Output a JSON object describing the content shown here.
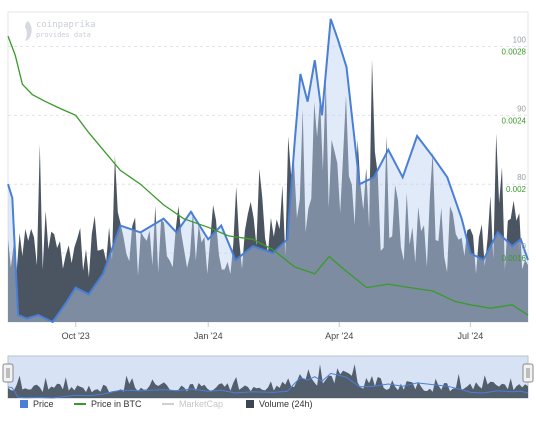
{
  "watermark": {
    "title": "coinpaprika",
    "subtitle": "provides data"
  },
  "legend": [
    {
      "key": "price",
      "label": "Price",
      "color": "#4a7fd6",
      "style": "box"
    },
    {
      "key": "price_btc",
      "label": "Price in BTC",
      "color": "#3a9a2a",
      "style": "line"
    },
    {
      "key": "marketcap",
      "label": "MarketCap",
      "color": "#cccccc",
      "style": "line",
      "disabled": true
    },
    {
      "key": "volume",
      "label": "Volume (24h)",
      "color": "#3c4654",
      "style": "box"
    }
  ],
  "chart_data": {
    "type": "line",
    "title": "",
    "x_ticks": [
      "Oct '23",
      "Jan '24",
      "Apr '24",
      "Jul '24"
    ],
    "x_tick_dates": [
      "2023-10-01",
      "2024-01-01",
      "2024-04-01",
      "2024-07-01"
    ],
    "x_range": [
      "2023-08-15",
      "2024-08-10"
    ],
    "y_left_ticks": [
      100,
      90,
      80,
      70
    ],
    "y_left_range": [
      60,
      105
    ],
    "y_right_ticks": [
      "0.0028",
      "0.0024",
      "0.002",
      "0.0016"
    ],
    "y_right_range": [
      0.0012,
      0.003
    ],
    "grid": true,
    "legend_position": "bottom-left",
    "series": [
      {
        "name": "Price",
        "color": "#4a7fd6",
        "axis": "left",
        "points": [
          [
            "2023-08-15",
            80
          ],
          [
            "2023-08-18",
            78
          ],
          [
            "2023-08-22",
            61
          ],
          [
            "2023-08-28",
            60.5
          ],
          [
            "2023-09-05",
            61
          ],
          [
            "2023-09-15",
            60
          ],
          [
            "2023-09-25",
            63
          ],
          [
            "2023-10-01",
            65
          ],
          [
            "2023-10-10",
            64
          ],
          [
            "2023-10-20",
            67
          ],
          [
            "2023-11-01",
            74
          ],
          [
            "2023-11-15",
            73
          ],
          [
            "2023-12-01",
            75
          ],
          [
            "2023-12-10",
            73
          ],
          [
            "2023-12-20",
            76
          ],
          [
            "2024-01-01",
            72
          ],
          [
            "2024-01-10",
            74
          ],
          [
            "2024-01-20",
            69
          ],
          [
            "2024-02-01",
            71
          ],
          [
            "2024-02-15",
            70
          ],
          [
            "2024-02-25",
            72
          ],
          [
            "2024-03-01",
            86
          ],
          [
            "2024-03-05",
            96
          ],
          [
            "2024-03-10",
            92
          ],
          [
            "2024-03-15",
            98
          ],
          [
            "2024-03-20",
            90
          ],
          [
            "2024-03-26",
            104
          ],
          [
            "2024-03-31",
            101
          ],
          [
            "2024-04-06",
            97
          ],
          [
            "2024-04-15",
            80
          ],
          [
            "2024-04-25",
            81
          ],
          [
            "2024-05-05",
            85
          ],
          [
            "2024-05-15",
            81
          ],
          [
            "2024-05-25",
            87
          ],
          [
            "2024-06-05",
            84
          ],
          [
            "2024-06-15",
            81
          ],
          [
            "2024-06-25",
            75
          ],
          [
            "2024-07-01",
            70
          ],
          [
            "2024-07-10",
            69
          ],
          [
            "2024-07-20",
            73
          ],
          [
            "2024-07-30",
            71
          ],
          [
            "2024-08-05",
            72
          ],
          [
            "2024-08-10",
            69
          ]
        ]
      },
      {
        "name": "Price in BTC",
        "color": "#3a9a2a",
        "axis": "right",
        "points": [
          [
            "2023-08-15",
            0.00286
          ],
          [
            "2023-08-20",
            0.00275
          ],
          [
            "2023-08-25",
            0.00258
          ],
          [
            "2023-09-01",
            0.00252
          ],
          [
            "2023-09-10",
            0.00248
          ],
          [
            "2023-09-20",
            0.00244
          ],
          [
            "2023-10-01",
            0.0024
          ],
          [
            "2023-10-10",
            0.0023
          ],
          [
            "2023-10-20",
            0.0022
          ],
          [
            "2023-11-01",
            0.00208
          ],
          [
            "2023-11-15",
            0.002
          ],
          [
            "2023-12-01",
            0.00188
          ],
          [
            "2023-12-15",
            0.0018
          ],
          [
            "2024-01-01",
            0.00175
          ],
          [
            "2024-01-15",
            0.0017
          ],
          [
            "2024-02-01",
            0.00168
          ],
          [
            "2024-02-15",
            0.00162
          ],
          [
            "2024-03-01",
            0.00152
          ],
          [
            "2024-03-15",
            0.00148
          ],
          [
            "2024-03-25",
            0.00158
          ],
          [
            "2024-04-05",
            0.0015
          ],
          [
            "2024-04-20",
            0.0014
          ],
          [
            "2024-05-05",
            0.00142
          ],
          [
            "2024-05-20",
            0.0014
          ],
          [
            "2024-06-05",
            0.00138
          ],
          [
            "2024-06-20",
            0.00132
          ],
          [
            "2024-07-01",
            0.0013
          ],
          [
            "2024-07-15",
            0.00128
          ],
          [
            "2024-07-30",
            0.0013
          ],
          [
            "2024-08-10",
            0.00124
          ]
        ]
      },
      {
        "name": "Volume (24h)",
        "color": "#3c4654",
        "axis": "volume",
        "relative_level": [
          [
            "2023-08-15",
            0.3
          ],
          [
            "2023-09-15",
            0.28
          ],
          [
            "2023-10-15",
            0.27
          ],
          [
            "2023-11-15",
            0.3
          ],
          [
            "2023-12-15",
            0.32
          ],
          [
            "2024-01-15",
            0.3
          ],
          [
            "2024-02-15",
            0.26
          ],
          [
            "2024-03-01",
            0.5
          ],
          [
            "2024-03-15",
            0.6
          ],
          [
            "2024-03-30",
            0.68
          ],
          [
            "2024-04-15",
            0.48
          ],
          [
            "2024-05-15",
            0.33
          ],
          [
            "2024-06-15",
            0.3
          ],
          [
            "2024-07-15",
            0.32
          ],
          [
            "2024-08-10",
            0.34
          ]
        ]
      }
    ]
  },
  "navigator": {
    "left_handle": "left-range-handle",
    "right_handle": "right-range-handle"
  }
}
